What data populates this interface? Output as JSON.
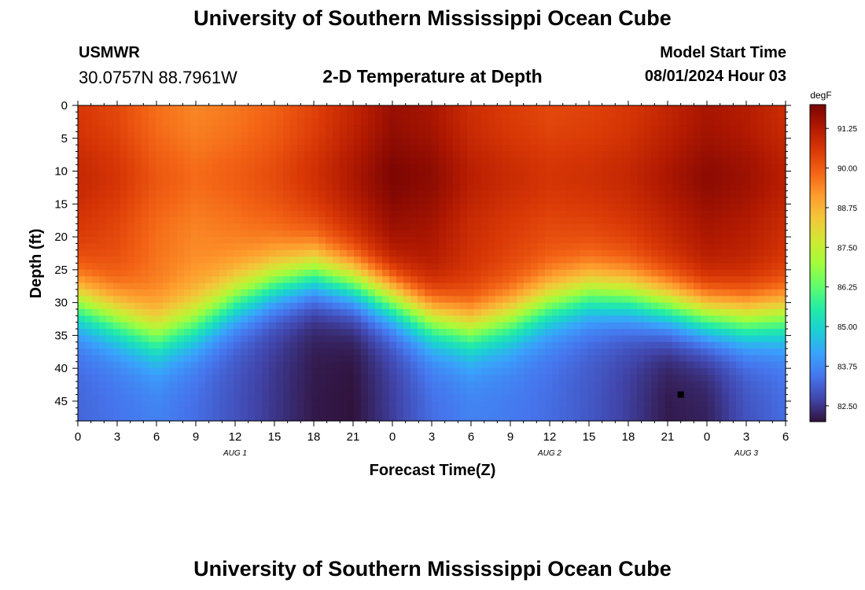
{
  "header": {
    "title": "University of Southern Mississippi Ocean Cube",
    "station": "USMWR",
    "coordinates": "30.0757N  88.7961W",
    "plot_title": "2-D Temperature at Depth",
    "model_label": "Model Start Time",
    "model_time": "08/01/2024 Hour 03"
  },
  "footer": {
    "title": "University of Southern Mississippi Ocean Cube"
  },
  "chart_data": {
    "type": "heatmap",
    "title": "2-D Temperature at Depth",
    "xlabel": "Forecast Time(Z)",
    "ylabel": "Depth (ft)",
    "x_range_hours": [
      0,
      54
    ],
    "x_tick_labels": [
      "0",
      "3",
      "6",
      "9",
      "12",
      "15",
      "18",
      "21",
      "0",
      "3",
      "6",
      "9",
      "12",
      "15",
      "18",
      "21",
      "0",
      "3",
      "6"
    ],
    "date_labels": [
      {
        "label": "AUG 1",
        "hour": 12
      },
      {
        "label": "AUG 2",
        "hour": 36
      },
      {
        "label": "AUG 3",
        "hour": 51
      }
    ],
    "y_range_ft": [
      0,
      48
    ],
    "y_ticks": [
      0,
      5,
      10,
      15,
      20,
      25,
      30,
      35,
      40,
      45
    ],
    "colorbar": {
      "unit": "degF",
      "min": 82.0,
      "max": 92.0,
      "tick_labels": [
        "82.50",
        "83.75",
        "85.00",
        "86.25",
        "87.50",
        "88.75",
        "90.00",
        "91.25"
      ],
      "colors": [
        "#30123b",
        "#4145ab",
        "#4675ed",
        "#39a2fc",
        "#1bcfd4",
        "#24eca6",
        "#61fc6c",
        "#a4fc3b",
        "#d1e834",
        "#f3c63a",
        "#fe9b2d",
        "#f36315",
        "#d93806",
        "#b11901",
        "#7a0403"
      ]
    },
    "marker": {
      "hour": 46,
      "depth_ft": 44
    },
    "thermocline_depth_ft": [
      [
        0,
        30
      ],
      [
        3,
        32.5
      ],
      [
        6,
        35
      ],
      [
        9,
        33
      ],
      [
        12,
        29.5
      ],
      [
        15,
        27
      ],
      [
        18,
        25.5
      ],
      [
        21,
        27
      ],
      [
        24,
        29.5
      ],
      [
        27,
        32.5
      ],
      [
        30,
        34
      ],
      [
        33,
        32.5
      ],
      [
        36,
        30
      ],
      [
        39,
        28.5
      ],
      [
        42,
        29
      ],
      [
        45,
        30.5
      ],
      [
        48,
        32
      ],
      [
        51,
        32.5
      ],
      [
        54,
        32
      ]
    ],
    "surface_temperature_degF": [
      [
        0,
        90.6
      ],
      [
        3,
        90.3
      ],
      [
        6,
        89.7
      ],
      [
        9,
        89.4
      ],
      [
        12,
        89.6
      ],
      [
        15,
        89.9
      ],
      [
        18,
        90.4
      ],
      [
        21,
        91.0
      ],
      [
        24,
        91.6
      ],
      [
        27,
        91.4
      ],
      [
        30,
        90.8
      ],
      [
        33,
        90.5
      ],
      [
        36,
        90.3
      ],
      [
        39,
        90.4
      ],
      [
        42,
        90.6
      ],
      [
        45,
        91.0
      ],
      [
        48,
        91.4
      ],
      [
        51,
        91.2
      ],
      [
        54,
        90.8
      ]
    ],
    "bottom_temperature_degF": [
      [
        0,
        83.2
      ],
      [
        3,
        83.4
      ],
      [
        6,
        83.6
      ],
      [
        9,
        83.3
      ],
      [
        12,
        82.9
      ],
      [
        15,
        82.5
      ],
      [
        18,
        82.1
      ],
      [
        21,
        82.0
      ],
      [
        24,
        82.6
      ],
      [
        27,
        83.3
      ],
      [
        30,
        83.6
      ],
      [
        33,
        83.5
      ],
      [
        36,
        83.3
      ],
      [
        39,
        83.0
      ],
      [
        42,
        82.6
      ],
      [
        45,
        82.1
      ],
      [
        48,
        82.2
      ],
      [
        51,
        82.9
      ],
      [
        54,
        83.3
      ]
    ]
  }
}
